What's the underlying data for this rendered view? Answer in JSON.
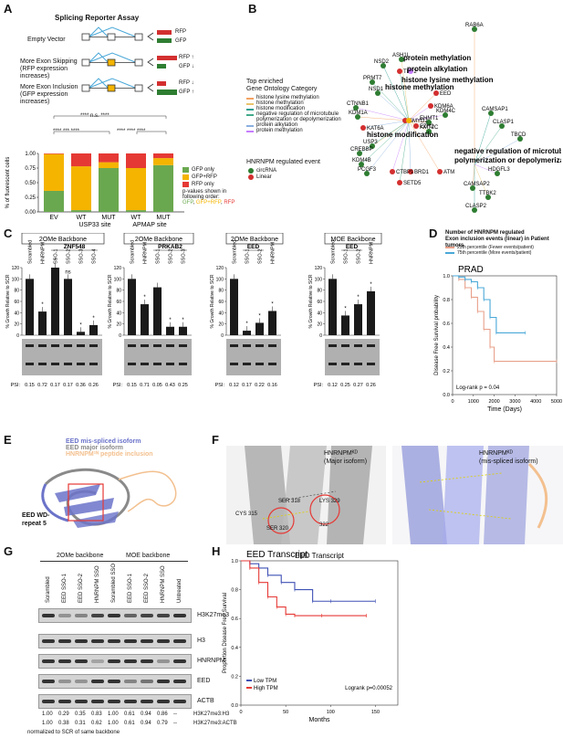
{
  "panel_labels": [
    "A",
    "B",
    "C",
    "D",
    "E",
    "F",
    "G",
    "H"
  ],
  "A": {
    "title": "Splicing Reporter Assay",
    "rows": [
      {
        "label": "Empty Vector",
        "out1": "RFP",
        "out2": "GFP"
      },
      {
        "label": "More Exon Skipping\n(RFP expression increases)",
        "out1": "RFP ↑",
        "out2": "GFP ↓"
      },
      {
        "label": "More Exon Inclusion\n(GFP expression increases)",
        "out1": "RFP ↓",
        "out2": "GFP ↑"
      }
    ],
    "sig_top": "**** n.s. ****",
    "sig_mid_left": "**** ***  ****",
    "sig_mid_right": "**** ****  ****",
    "ylabel": "% of fluorescent cells",
    "legend": [
      "GFP only",
      "GFP+RFP",
      "RFP only"
    ],
    "legend_note": "p-values shown in following order:",
    "legend_order": [
      "GFP",
      "GFP+RFP",
      "RFP"
    ],
    "colors": {
      "gfp": "#6aa84f",
      "both": "#f4b400",
      "rfp": "#e53935"
    }
  },
  "chart_data": [
    {
      "type": "bar",
      "stacked": true,
      "categories": [
        "EV",
        "WT",
        "MUT",
        "WT",
        "MUT"
      ],
      "group_labels": [
        "USP33 site",
        "APMAP site"
      ],
      "ylabel": "% of fluorescent cells",
      "ylim": [
        0,
        1.0
      ],
      "yticks": [
        "0.00",
        "0.25",
        "0.50",
        "0.75",
        "1.00"
      ],
      "series": [
        {
          "name": "GFP only",
          "values": [
            0.36,
            0.03,
            0.75,
            0.03,
            0.8
          ]
        },
        {
          "name": "GFP+RFP",
          "values": [
            0.63,
            0.75,
            0.1,
            0.72,
            0.12
          ]
        },
        {
          "name": "RFP only",
          "values": [
            0.01,
            0.22,
            0.15,
            0.25,
            0.08
          ]
        }
      ]
    },
    {
      "type": "line",
      "title": "PRAD",
      "ylabel": "Disease Free Survival probability",
      "xlabel": "Time (Days)",
      "xticks": [
        "0",
        "1000",
        "2000",
        "3000",
        "4000",
        "5000"
      ],
      "yticks": [
        "0.0",
        "0.2",
        "0.4",
        "0.6",
        "0.8",
        "1.0"
      ],
      "annotation": "Log-rank p = 0.04",
      "series": [
        {
          "name": "25th percentile (Fewer events/patient)",
          "x": [
            0,
            300,
            600,
            900,
            1200,
            1500,
            1800,
            2000,
            5000
          ],
          "y": [
            1.0,
            0.97,
            0.9,
            0.82,
            0.7,
            0.55,
            0.4,
            0.28,
            0.28
          ]
        },
        {
          "name": "75th percentile (More events/patient)",
          "x": [
            0,
            300,
            600,
            900,
            1200,
            1500,
            1800,
            2100,
            3500
          ],
          "y": [
            1.0,
            0.99,
            0.97,
            0.95,
            0.9,
            0.8,
            0.65,
            0.52,
            0.52
          ]
        }
      ]
    },
    {
      "type": "line",
      "title": "EED Transcript",
      "ylabel": "Proportion Disease Free Survival",
      "xlabel": "Months",
      "xticks": [
        "0",
        "50",
        "100",
        "150"
      ],
      "yticks": [
        "0.0",
        "0.2",
        "0.4",
        "0.6",
        "0.8",
        "1.0"
      ],
      "annotation": "Logrank p=0.00052",
      "series": [
        {
          "name": "Low TPM",
          "x": [
            0,
            10,
            20,
            30,
            45,
            60,
            80,
            100,
            150
          ],
          "y": [
            1.0,
            0.98,
            0.95,
            0.9,
            0.85,
            0.8,
            0.72,
            0.72,
            0.72
          ]
        },
        {
          "name": "High TPM",
          "x": [
            0,
            10,
            20,
            30,
            40,
            50,
            60,
            90,
            140
          ],
          "y": [
            1.0,
            0.95,
            0.85,
            0.75,
            0.68,
            0.63,
            0.62,
            0.62,
            0.62
          ]
        }
      ]
    }
  ],
  "B": {
    "legend_title": "Top enriched\nGene Ontology Category",
    "go_categories": [
      {
        "label": "histone lysine methylation",
        "color": "#f4a261"
      },
      {
        "label": "histone methylation",
        "color": "#e9c46a"
      },
      {
        "label": "histone modification",
        "color": "#2a9d8f"
      },
      {
        "label": "negative regulation of microtubule polymerization or depolymerization",
        "color": "#43aa8b"
      },
      {
        "label": "protein alkylation",
        "color": "#8ab0e0"
      },
      {
        "label": "protein methylation",
        "color": "#c77dff"
      }
    ],
    "event_title": "HNRNPM regulated event",
    "events": [
      {
        "label": "circRNA",
        "color": "#2e7d32"
      },
      {
        "label": "Linear",
        "color": "#d32f2f"
      }
    ],
    "hub_labels": [
      "protein methylation",
      "protein alkylation",
      "histone lysine methylation",
      "histone methylation",
      "histone modification",
      "negative regulation of microtubule polymerization or depolymerization"
    ],
    "genes": [
      "RAB6A",
      "ASH1L",
      "NSD2",
      "TET2",
      "PRMT7",
      "NSD1",
      "CTNNB1",
      "KDM1A",
      "KAT6A",
      "USP3",
      "CREBBP",
      "KDM4B",
      "PCGF3",
      "SETD5",
      "BRD1",
      "CTBP1",
      "ATM",
      "KMT2C",
      "EHMT1",
      "EZH2",
      "SMYD2",
      "KDM6A",
      "KDM4C",
      "EED",
      "CAMSAP1",
      "CLASP1",
      "TBCD",
      "HDGFL3",
      "CAMSAP2",
      "TTBK2",
      "CLASP2"
    ]
  },
  "C": {
    "panels": [
      {
        "title": "2OMe Backbone",
        "lanes": [
          "Scrambled",
          "HNRNPM",
          "SSO-1",
          "SSO-2",
          "SSO-3",
          "SSO-4"
        ],
        "bracket": "ZNF548",
        "values": [
          100,
          42,
          122,
          100,
          6,
          18
        ],
        "sig": [
          "",
          "*",
          "*",
          "ns",
          "*",
          "*"
        ],
        "psi": [
          "0.15",
          "0.72",
          "0.17",
          "0.17",
          "0.36",
          "0.26"
        ]
      },
      {
        "title": "2OMe Backbone",
        "lanes": [
          "Scrambled",
          "HNRNPM",
          "SSO-1",
          "SSO-2",
          "SSO-3"
        ],
        "bracket": "PRKAB2",
        "values": [
          100,
          55,
          85,
          15,
          15
        ],
        "sig": [
          "",
          "*",
          "",
          "*",
          "*"
        ],
        "psi": [
          "0.15",
          "0.71",
          "0.05",
          "0.43",
          "0.25"
        ]
      },
      {
        "title": "2OMe Backbone",
        "lanes": [
          "Scrambled",
          "SSO-1",
          "SSO-2",
          "HNRNPM"
        ],
        "bracket": "EED",
        "values": [
          100,
          8,
          22,
          43
        ],
        "sig": [
          "",
          "*",
          "*",
          "*"
        ],
        "psi": [
          "0.12",
          "0.17",
          "0.22",
          "0.16"
        ]
      },
      {
        "title": "MOE Backbone",
        "lanes": [
          "Scrambled",
          "SSO-1",
          "SSO-2",
          "HNRNPM"
        ],
        "bracket": "EED",
        "values": [
          100,
          35,
          55,
          78
        ],
        "sig": [
          "",
          "*",
          "*",
          "*"
        ],
        "psi": [
          "0.12",
          "0.25",
          "0.27",
          "0.26"
        ]
      }
    ],
    "ylabel": "% Growth Relative to SCR",
    "psi_label": "PSI:",
    "yticks": [
      "0",
      "20",
      "40",
      "60",
      "80",
      "100",
      "120"
    ]
  },
  "D": {
    "title": "Number of HNRNPM regulated\nExon inclusion events (linear) in Patient tumors",
    "legend": [
      {
        "label": "25th percentile (Fewer events/patient)",
        "color": "#e8a08a"
      },
      {
        "label": "75th percentile (More events/patient)",
        "color": "#4aa8d8"
      }
    ]
  },
  "E": {
    "legend": [
      {
        "label": "EED mis-spliced isoform",
        "color": "#6b73c9"
      },
      {
        "label": "EED major isoform",
        "color": "#8a8a8a"
      },
      {
        "label": "HNRNPM¹ᴺ peptide inclusion",
        "color": "#f3c08f"
      }
    ],
    "annotation": "EED WD-\nrepeat 5"
  },
  "F": {
    "left_label": "HNRNPMᴷᴰ\n(Major isoform)",
    "right_label": "HNRNPMᴷᴰ\n(mis-spliced isoform)",
    "residues": [
      "CYS 315",
      "SER 318",
      "SER 320",
      "LYS 329",
      "322"
    ]
  },
  "G": {
    "group1": "2OMe backbone",
    "group2": "MOE backbone",
    "lanes": [
      "Scrambled",
      "EED SSO-1",
      "EED SSO-2",
      "HNRNPM SSO",
      "Scrambled SSO",
      "EED SSO-1",
      "EED SSO-2",
      "HNRNPM SSO",
      "Untreated"
    ],
    "blots": [
      "H3K27me3",
      "H3",
      "HNRNPM",
      "EED",
      "ACTB"
    ],
    "row1": [
      "1.00",
      "0.29",
      "0.35",
      "0.83",
      "1.00",
      "0.61",
      "0.94",
      "0.86",
      "--"
    ],
    "row2": [
      "1.00",
      "0.38",
      "0.31",
      "0.62",
      "1.00",
      "0.61",
      "0.94",
      "0.79",
      "--"
    ],
    "row1_label": "H3K27me3:H3",
    "row2_label": "H3K27me3:ACTB",
    "footnote": "normalized to SCR of same backbone"
  },
  "H": {
    "legend": [
      {
        "label": "Low TPM",
        "color": "#3f51b5"
      },
      {
        "label": "High TPM",
        "color": "#e53935"
      }
    ]
  }
}
